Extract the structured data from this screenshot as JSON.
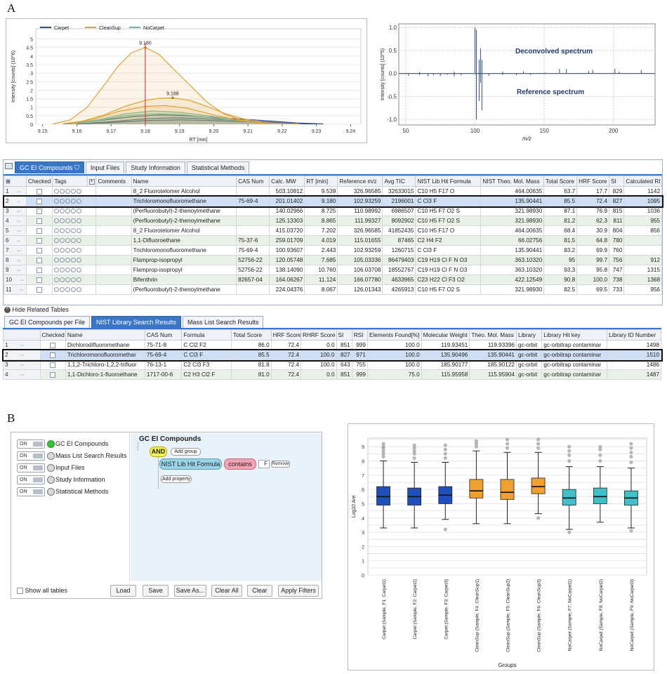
{
  "labels": {
    "a": "A",
    "b": "B"
  },
  "chart1": {
    "chart_data": {
      "type": "line",
      "legend": [
        "Carpet",
        "CleanSup",
        "NoCarpet"
      ],
      "legend_position": "top-left",
      "ylabel": "Intensity [counts] (10^6)",
      "xlabel": "RT [min]",
      "xlim": [
        9.148,
        9.243
      ],
      "ylim": [
        0,
        5.6
      ],
      "xticks": [
        "9.15",
        "9.16",
        "9.17",
        "9.18",
        "9.19",
        "9.20",
        "9.21",
        "9.22",
        "9.23",
        "9.24"
      ],
      "yticks": [
        "0",
        "0.5",
        "1",
        "1.5",
        "2",
        "2.5",
        "3",
        "3.5",
        "4",
        "4.5",
        "5"
      ],
      "annotations": [
        {
          "text": "9.180",
          "x": 9.18,
          "y": 4.5
        },
        {
          "text": "9.188",
          "x": 9.188,
          "y": 1.55
        }
      ],
      "marker_x": 9.18,
      "series": [
        {
          "name": "CleanSup",
          "color": "#e2a23c",
          "x": [
            9.153,
            9.158,
            9.163,
            9.168,
            9.172,
            9.176,
            9.18,
            9.184,
            9.188,
            9.193,
            9.198,
            9.203,
            9.208,
            9.212,
            9.216,
            9.22,
            9.225
          ],
          "y": [
            0.02,
            0.25,
            1.0,
            2.3,
            3.4,
            4.2,
            4.5,
            4.1,
            3.3,
            2.3,
            1.3,
            0.6,
            0.25,
            0.12,
            0.08,
            0.05,
            0.02
          ]
        },
        {
          "name": "CleanSup",
          "color": "#e2a23c",
          "x": [
            9.156,
            9.162,
            9.168,
            9.174,
            9.18,
            9.184,
            9.188,
            9.193,
            9.198,
            9.203,
            9.208,
            9.214,
            9.22
          ],
          "y": [
            0.03,
            0.2,
            0.55,
            1.05,
            1.4,
            1.52,
            1.55,
            1.4,
            1.05,
            0.65,
            0.35,
            0.12,
            0.03
          ]
        },
        {
          "name": "CleanSup",
          "color": "#e2a23c",
          "x": [
            9.158,
            9.165,
            9.172,
            9.18,
            9.186,
            9.192,
            9.2,
            9.208,
            9.216
          ],
          "y": [
            0.02,
            0.3,
            0.75,
            1.05,
            1.1,
            0.95,
            0.55,
            0.2,
            0.03
          ]
        },
        {
          "name": "NoCarpet",
          "color": "#5cc2b8",
          "x": [
            9.158,
            9.166,
            9.174,
            9.182,
            9.19,
            9.198,
            9.206,
            9.214,
            9.222
          ],
          "y": [
            0.02,
            0.25,
            0.6,
            0.78,
            0.7,
            0.5,
            0.28,
            0.1,
            0.02
          ]
        },
        {
          "name": "NoCarpet",
          "color": "#5cc2b8",
          "x": [
            9.158,
            9.166,
            9.174,
            9.182,
            9.19,
            9.198,
            9.206,
            9.214,
            9.222
          ],
          "y": [
            0.02,
            0.2,
            0.5,
            0.62,
            0.58,
            0.42,
            0.22,
            0.08,
            0.02
          ]
        },
        {
          "name": "Carpet",
          "color": "#2e4f8f",
          "x": [
            9.156,
            9.166,
            9.176,
            9.184,
            9.192,
            9.2,
            9.208,
            9.216,
            9.224,
            9.232
          ],
          "y": [
            0.02,
            0.2,
            0.45,
            0.55,
            0.5,
            0.4,
            0.3,
            0.2,
            0.08,
            0.02
          ]
        },
        {
          "name": "Carpet",
          "color": "#2e4f8f",
          "x": [
            9.16,
            9.17,
            9.18,
            9.188,
            9.196,
            9.204,
            9.212,
            9.22,
            9.228
          ],
          "y": [
            0.02,
            0.15,
            0.32,
            0.38,
            0.34,
            0.26,
            0.18,
            0.08,
            0.02
          ]
        },
        {
          "name": "Carpet",
          "color": "#2e4f8f",
          "x": [
            9.16,
            9.17,
            9.18,
            9.19,
            9.2,
            9.21,
            9.22,
            9.23
          ],
          "y": [
            0.02,
            0.1,
            0.22,
            0.26,
            0.22,
            0.14,
            0.06,
            0.02
          ]
        }
      ]
    }
  },
  "chart2": {
    "chart_data": {
      "type": "bar",
      "ylabel": "Intensity [counts] (10^5)",
      "xlabel": "m/z",
      "xlim": [
        45,
        230
      ],
      "ylim": [
        -1.12,
        1.08
      ],
      "xticks": [
        "50",
        "100",
        "150",
        "200"
      ],
      "yticks": [
        "1.0",
        "0.5",
        "0.0",
        "-0.5",
        "-1.0"
      ],
      "annotations": [
        "Deconvolved spectrum",
        "Reference spectrum"
      ],
      "series": [
        {
          "name": "Deconvolved spectrum",
          "x": [
            60,
            85,
            100,
            101,
            103,
            104,
            105,
            120,
            135,
            151,
            161,
            166,
            182,
            185,
            201,
            204,
            220
          ],
          "y": [
            0.03,
            0.04,
            1.0,
            0.95,
            0.3,
            0.55,
            0.3,
            0.04,
            0.05,
            0.02,
            0.1,
            0.1,
            0.06,
            0.08,
            0.1,
            0.04,
            0.08
          ]
        },
        {
          "name": "Reference spectrum",
          "x": [
            52,
            60,
            66,
            70,
            75,
            80,
            85,
            90,
            101,
            103,
            104,
            105,
            110,
            120,
            130,
            140
          ],
          "y": [
            -0.05,
            -0.03,
            -0.06,
            -0.04,
            -0.05,
            -0.03,
            -0.06,
            -0.04,
            -1.0,
            -0.6,
            -0.2,
            -0.8,
            -0.05,
            -0.03,
            -0.04,
            -0.03
          ]
        }
      ]
    }
  },
  "compounds": {
    "tabs": [
      "GC EI Compounds",
      "Input Files",
      "Study Information",
      "Statistical Methods"
    ],
    "headers": [
      "",
      "Checked",
      "Tags",
      "",
      "Comments",
      "Name",
      "CAS Num",
      "Calc. MW",
      "RT [min]",
      "Reference m/z",
      "Avg TIC",
      "NIST Lib Hit Formula",
      "NIST Theo. Mol. Mass",
      "Total Score",
      "HRF Score",
      "SI",
      "Calculated RI"
    ],
    "rows": [
      [
        "1",
        "8_2 Fluorotelomer Alcohol",
        "",
        "503.10812",
        "9.539",
        "326.96585",
        "32633015",
        "C10 H5 F17 O",
        "464.00635",
        "63.7",
        "17.7",
        "829",
        "1142"
      ],
      [
        "2",
        "Trichloromonofluoromethane",
        "75-69-4",
        "201.01402",
        "9.180",
        "102.93259",
        "2196001",
        "C Cl3 F",
        "135.90441",
        "85.5",
        "72.4",
        "827",
        "1095"
      ],
      [
        "3",
        "(Perfluorobutyl)-2-thenoylmethane",
        "",
        "140.02966",
        "8.725",
        "110.98992",
        "6986507",
        "C10 H5 F7 O2 S",
        "321.98930",
        "87.1",
        "76.9",
        "815",
        "1036"
      ],
      [
        "4",
        "(Perfluorobutyl)-2-thenoylmethane",
        "",
        "125.13303",
        "8.865",
        "111.99327",
        "8092902",
        "C10 H5 F7 O2 S",
        "321.98930",
        "81.2",
        "62.3",
        "811",
        "955"
      ],
      [
        "5",
        "8_2 Fluorotelomer Alcohol",
        "",
        "415.03720",
        "7.202",
        "326.96585",
        "41852435",
        "C10 H5 F17 O",
        "464.00635",
        "68.4",
        "30.9",
        "804",
        "856"
      ],
      [
        "6",
        "1,1-Difluoroethane",
        "75-37-6",
        "259.01709",
        "4.019",
        "115.01655",
        "87465",
        "C2 H4 F2",
        "66.02756",
        "81.5",
        "64.8",
        "780",
        ""
      ],
      [
        "7",
        "Trichloromonofluoromethane",
        "75-69-4",
        "100.93607",
        "2.443",
        "102.93259",
        "1260715",
        "C Cl3 F",
        "135.90441",
        "83.2",
        "69.9",
        "760",
        ""
      ],
      [
        "8",
        "Flamprop-isopropyl",
        "52756-22",
        "120.05748",
        "7.685",
        "105.03336",
        "86479403",
        "C19 H19 Cl F N O3",
        "363.10320",
        "95",
        "99.7",
        "756",
        "912"
      ],
      [
        "9",
        "Flamprop-isopropyl",
        "52756-22",
        "138.14090",
        "10.760",
        "106.03708",
        "18552767",
        "C19 H19 Cl F N O3",
        "363.10320",
        "93.3",
        "95.8",
        "747",
        "1315"
      ],
      [
        "10",
        "Bifenthrin",
        "82657-04",
        "164.06267",
        "11.124",
        "166.07780",
        "4633965",
        "C23 H22 Cl F3 O2",
        "422.12549",
        "90.8",
        "100.0",
        "738",
        "1368"
      ],
      [
        "11",
        "(Perfluorobutyl)-2-thenoylmethane",
        "",
        "224.04376",
        "8.067",
        "126.01343",
        "4265913",
        "C10 H5 F7 O2 S",
        "321.98930",
        "82.5",
        "69.5",
        "733",
        "956"
      ]
    ]
  },
  "hide_related": "Hide Related Tables",
  "nist": {
    "tabs": [
      "GC EI Compounds per File",
      "NIST Library Search Results",
      "Mass List Search Results"
    ],
    "headers": [
      "",
      "Checked",
      "Name",
      "CAS Num",
      "Formula",
      "Total Score",
      "HRF Score",
      "RHRF Score",
      "SI",
      "RSI",
      "Elements Found[%]",
      "Molecular Weight",
      "Theo. Mol. Mass",
      "Library",
      "Library Hit key",
      "Library ID Number"
    ],
    "rows": [
      [
        "1",
        "Dichlorodifluoromethane",
        "75-71-8",
        "C Cl2 F2",
        "86.0",
        "72.4",
        "0.0",
        "851",
        "999",
        "100.0",
        "119.93451",
        "119.93396",
        "gc-orbit",
        "gc-orbitrap contaminar",
        "1498"
      ],
      [
        "2",
        "Trichloromonofluoromethar",
        "75-69-4",
        "C Cl3 F",
        "85.5",
        "72.4",
        "100.0",
        "827",
        "971",
        "100.0",
        "135.90496",
        "135.90441",
        "gc-orbit",
        "gc-orbitrap contaminar",
        "1510"
      ],
      [
        "3",
        "1,1,2-Trichloro-1,2,2-trifluor",
        "76-13-1",
        "C2 Cl3 F3",
        "81.8",
        "72.4",
        "100.0",
        "643",
        "755",
        "100.0",
        "185.90177",
        "185.90122",
        "gc-orbit",
        "gc-orbitrap contaminar",
        "1486"
      ],
      [
        "4",
        "1,1-Dichloro-1-fluoroethane",
        "1717-00-6",
        "C2 H3 Cl2 F",
        "81.0",
        "72.4",
        "0.0",
        "851",
        "999",
        "75.0",
        "115.95958",
        "115.95904",
        "gc-orbit",
        "gc-orbitrap contaminar",
        "1487"
      ]
    ]
  },
  "filter": {
    "toggle_on": "ON",
    "items": [
      "GC EI Compounds",
      "Mass List Search Results",
      "Input Files",
      "Study Information",
      "Statistical Methods"
    ],
    "root": "GC EI Compounds",
    "and_label": "AND",
    "add_group": "Add group",
    "condition_field": "NIST Lib Hit Formula",
    "condition_op": "contains",
    "condition_value": "F",
    "remove": "Remove",
    "add_property": "Add property",
    "show_all": "Show all tables",
    "buttons": [
      "Load",
      "Save",
      "Save As...",
      "Clear All",
      "Clear",
      "Apply Filters"
    ]
  },
  "boxplot": {
    "chart_data": {
      "type": "box",
      "ylabel": "Log10 Are",
      "xlabel": "Groups",
      "ylim": [
        0,
        9.6
      ],
      "yticks": [
        "0",
        "1",
        "2",
        "3",
        "4",
        "5",
        "6",
        "7",
        "8",
        "9"
      ],
      "categories": [
        "Carpet (Sample, F1: Carpet1)",
        "Carpet (Sample, F2: Carpet2)",
        "Carpet (Sample, F3: Carpet3)",
        "CleanSup (Sample, F4: CleanSup1)",
        "CleanSup (Sample, F5: CleanSup2)",
        "CleanSup (Sample, F6: CleanSup3)",
        "NoCarpet (Sample, F7: NoCarpet1)",
        "NoCarpet (Sample, F8: NoCarpet2)",
        "NoCarpet (Sample, F9: NoCarpet3)"
      ],
      "colors": [
        "#1f4fb8",
        "#1f4fb8",
        "#1f4fb8",
        "#f0a030",
        "#f0a030",
        "#f0a030",
        "#3ec1c8",
        "#3ec1c8",
        "#3ec1c8"
      ],
      "boxes": [
        {
          "min": 3.3,
          "q1": 4.9,
          "median": 5.5,
          "q3": 6.2,
          "max": 8.0,
          "outliers": [
            8.3,
            8.5,
            8.7,
            8.9,
            9.0,
            9.2
          ]
        },
        {
          "min": 3.3,
          "q1": 4.9,
          "median": 5.5,
          "q3": 6.1,
          "max": 7.9,
          "outliers": [
            8.2,
            8.5,
            8.7,
            8.9,
            9.1
          ]
        },
        {
          "min": 3.9,
          "q1": 5.0,
          "median": 5.6,
          "q3": 6.2,
          "max": 7.9,
          "outliers": [
            3.2,
            8.2,
            8.5,
            8.8,
            9.1
          ]
        },
        {
          "min": 3.6,
          "q1": 5.4,
          "median": 5.9,
          "q3": 6.7,
          "max": 8.7,
          "outliers": [
            9.0,
            9.2,
            9.4
          ]
        },
        {
          "min": 3.6,
          "q1": 5.3,
          "median": 5.8,
          "q3": 6.7,
          "max": 8.6,
          "outliers": [
            8.9,
            9.2,
            9.5
          ]
        },
        {
          "min": 4.3,
          "q1": 5.7,
          "median": 6.2,
          "q3": 6.8,
          "max": 8.6,
          "outliers": [
            4.0,
            8.9,
            9.2,
            9.5
          ]
        },
        {
          "min": 3.2,
          "q1": 4.9,
          "median": 5.4,
          "q3": 6.0,
          "max": 7.6,
          "outliers": [
            3.0,
            8.0,
            8.4,
            8.7,
            9.0
          ]
        },
        {
          "min": 3.7,
          "q1": 5.0,
          "median": 5.5,
          "q3": 6.1,
          "max": 7.6,
          "outliers": [
            8.0,
            8.4,
            8.8,
            9.0
          ]
        },
        {
          "min": 3.3,
          "q1": 4.9,
          "median": 5.4,
          "q3": 5.9,
          "max": 7.5,
          "outliers": [
            3.1,
            7.9,
            8.3,
            8.6,
            8.9,
            9.2
          ]
        }
      ]
    }
  }
}
